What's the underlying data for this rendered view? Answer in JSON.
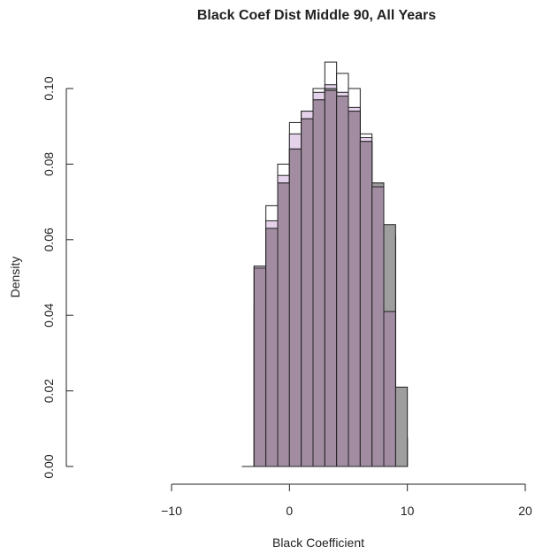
{
  "chart_data": {
    "type": "bar",
    "title": "Black Coef Dist Middle 90, All Years",
    "xlabel": "Black Coefficient",
    "ylabel": "Density",
    "xlim": [
      -10,
      20
    ],
    "ylim": [
      0,
      0.1
    ],
    "x_ticks": [
      "−10",
      "0",
      "10",
      "20"
    ],
    "x_tick_values": [
      -10,
      0,
      10,
      20
    ],
    "y_ticks": [
      "0.00",
      "0.02",
      "0.04",
      "0.06",
      "0.08",
      "0.10"
    ],
    "y_tick_values": [
      0,
      0.02,
      0.04,
      0.06,
      0.08,
      0.1
    ],
    "bin_width": 1,
    "series": [
      {
        "color": "#ffffff",
        "opacity": 1,
        "bins": [
          {
            "x0": -4,
            "value": 0.0
          },
          {
            "x0": -3,
            "value": 0.053
          },
          {
            "x0": -2,
            "value": 0.069
          },
          {
            "x0": -1,
            "value": 0.08
          },
          {
            "x0": 0,
            "value": 0.091
          },
          {
            "x0": 1,
            "value": 0.094
          },
          {
            "x0": 2,
            "value": 0.1
          },
          {
            "x0": 3,
            "value": 0.107
          },
          {
            "x0": 4,
            "value": 0.104
          },
          {
            "x0": 5,
            "value": 0.1
          },
          {
            "x0": 6,
            "value": 0.088
          },
          {
            "x0": 7,
            "value": 0.075
          },
          {
            "x0": 8,
            "value": 0.061
          },
          {
            "x0": 9,
            "value": 0.0075
          }
        ]
      },
      {
        "color": "#e4d1ea",
        "opacity": 1,
        "bins": [
          {
            "x0": -4,
            "value": 0.0
          },
          {
            "x0": -3,
            "value": 0.053
          },
          {
            "x0": -2,
            "value": 0.065
          },
          {
            "x0": -1,
            "value": 0.077
          },
          {
            "x0": 0,
            "value": 0.088
          },
          {
            "x0": 1,
            "value": 0.094
          },
          {
            "x0": 2,
            "value": 0.099
          },
          {
            "x0": 3,
            "value": 0.101
          },
          {
            "x0": 4,
            "value": 0.099
          },
          {
            "x0": 5,
            "value": 0.095
          },
          {
            "x0": 6,
            "value": 0.087
          },
          {
            "x0": 7,
            "value": 0.074
          },
          {
            "x0": 8,
            "value": 0.061
          },
          {
            "x0": 9,
            "value": 0.0075
          }
        ]
      },
      {
        "color": "#9e9e9e",
        "opacity": 1,
        "bins": [
          {
            "x0": -4,
            "value": 0.0
          },
          {
            "x0": -3,
            "value": 0.0425
          },
          {
            "x0": -2,
            "value": 0.063
          },
          {
            "x0": -1,
            "value": 0.075
          },
          {
            "x0": 0,
            "value": 0.084
          },
          {
            "x0": 1,
            "value": 0.092
          },
          {
            "x0": 2,
            "value": 0.097
          },
          {
            "x0": 3,
            "value": 0.1
          },
          {
            "x0": 4,
            "value": 0.098
          },
          {
            "x0": 5,
            "value": 0.094
          },
          {
            "x0": 6,
            "value": 0.086
          },
          {
            "x0": 7,
            "value": 0.075
          },
          {
            "x0": 8,
            "value": 0.064
          },
          {
            "x0": 9,
            "value": 0.021
          }
        ]
      },
      {
        "color": "#a18ca1",
        "opacity": 1,
        "bins": [
          {
            "x0": -4,
            "value": 0.0
          },
          {
            "x0": -3,
            "value": 0.0525
          },
          {
            "x0": -2,
            "value": 0.063
          },
          {
            "x0": -1,
            "value": 0.075
          },
          {
            "x0": 0,
            "value": 0.084
          },
          {
            "x0": 1,
            "value": 0.092
          },
          {
            "x0": 2,
            "value": 0.097
          },
          {
            "x0": 3,
            "value": 0.0995
          },
          {
            "x0": 4,
            "value": 0.098
          },
          {
            "x0": 5,
            "value": 0.094
          },
          {
            "x0": 6,
            "value": 0.086
          },
          {
            "x0": 7,
            "value": 0.074
          },
          {
            "x0": 8,
            "value": 0.041
          },
          {
            "x0": 9,
            "value": 0.0
          }
        ]
      }
    ]
  }
}
